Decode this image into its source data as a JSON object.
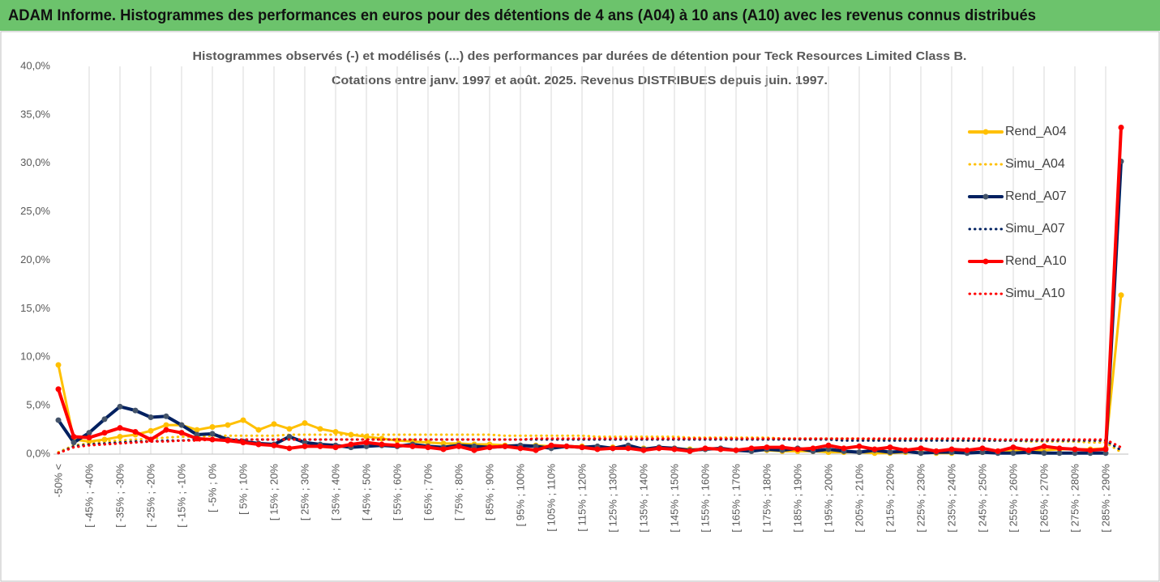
{
  "header": {
    "title": "ADAM Informe. Histogrammes des performances en euros pour des détentions de 4 ans (A04) à 10 ans (A10) avec les revenus connus distribués"
  },
  "chart_data": {
    "type": "line",
    "title": [
      "Histogrammes observés (-) et modélisés (...) des performances par durées de détention pour Teck Resources Limited Class B.",
      "Cotations entre janv. 1997 et août. 2025. Revenus DISTRIBUES depuis juin. 1997."
    ],
    "categories": [
      "-50% <",
      null,
      "[ -45% ; -40%",
      null,
      "[ -35% ; -30%",
      null,
      "[ -25% ; -20%",
      null,
      "[ -15% ; -10%",
      null,
      "[ -5% ; 0%",
      null,
      "[ 5% ; 10%",
      null,
      "[ 15% ; 20%",
      null,
      "[ 25% ; 30%",
      null,
      "[ 35% ; 40%",
      null,
      "[ 45% ; 50%",
      null,
      "[ 55% ; 60%",
      null,
      "[ 65% ; 70%",
      null,
      "[ 75% ; 80%",
      null,
      "[ 85% ; 90%",
      null,
      "[ 95% ; 100%",
      null,
      "[ 105% ; 110%",
      null,
      "[ 115% ; 120%",
      null,
      "[ 125% ; 130%",
      null,
      "[ 135% ; 140%",
      null,
      "[ 145% ; 150%",
      null,
      "[ 155% ; 160%",
      null,
      "[ 165% ; 170%",
      null,
      "[ 175% ; 180%",
      null,
      "[ 185% ; 190%",
      null,
      "[ 195% ; 200%",
      null,
      "[ 205% ; 210%",
      null,
      "[ 215% ; 220%",
      null,
      "[ 225% ; 230%",
      null,
      "[ 235% ; 240%",
      null,
      "[ 245% ; 250%",
      null,
      "[ 255% ; 260%",
      null,
      "[ 265% ; 270%",
      null,
      "[ 275% ; 280%",
      null,
      "[ 285% ; 290%",
      null
    ],
    "series": [
      {
        "name": "Rend_A04",
        "color": "#ffc000",
        "line_style": "solid",
        "values": [
          9.2,
          1.5,
          1.3,
          1.5,
          1.8,
          2.0,
          2.4,
          3.0,
          3.0,
          2.5,
          2.8,
          3.0,
          3.5,
          2.5,
          3.1,
          2.6,
          3.2,
          2.6,
          2.3,
          2.0,
          1.8,
          1.6,
          1.4,
          1.3,
          1.2,
          1.1,
          1.1,
          1.0,
          1.0,
          0.9,
          0.9,
          0.9,
          0.8,
          0.8,
          0.8,
          0.7,
          0.7,
          0.7,
          0.6,
          0.6,
          0.6,
          0.5,
          0.5,
          0.5,
          0.4,
          0.4,
          0.4,
          0.3,
          0.3,
          0.3,
          0.2,
          0.2,
          0.2,
          0.1,
          0.1,
          0.2,
          0.2,
          0.1,
          0.1,
          0.2,
          0.2,
          0.3,
          0.3,
          0.4,
          0.4,
          0.5,
          0.5,
          0.5,
          0.6,
          16.4
        ]
      },
      {
        "name": "Simu_A04",
        "color": "#ffc000",
        "line_style": "dotted",
        "values": [
          0.2,
          0.9,
          1.1,
          1.3,
          1.4,
          1.5,
          1.6,
          1.7,
          1.8,
          1.8,
          1.9,
          1.9,
          1.9,
          1.9,
          1.9,
          2.0,
          2.0,
          2.0,
          2.0,
          2.0,
          2.0,
          2.0,
          2.0,
          2.0,
          2.0,
          2.0,
          2.0,
          2.0,
          2.0,
          1.9,
          1.9,
          1.9,
          1.9,
          1.9,
          1.9,
          1.8,
          1.8,
          1.8,
          1.8,
          1.8,
          1.8,
          1.7,
          1.7,
          1.7,
          1.7,
          1.7,
          1.7,
          1.6,
          1.6,
          1.6,
          1.6,
          1.6,
          1.6,
          1.5,
          1.5,
          1.5,
          1.5,
          1.5,
          1.4,
          1.4,
          1.4,
          1.4,
          1.4,
          1.3,
          1.3,
          1.3,
          1.3,
          1.2,
          1.2,
          0.2
        ]
      },
      {
        "name": "Rend_A07",
        "color": "#002060",
        "line_style": "solid",
        "values": [
          3.5,
          1.2,
          2.2,
          3.6,
          4.9,
          4.5,
          3.8,
          3.9,
          3.0,
          2.0,
          2.1,
          1.5,
          1.3,
          1.1,
          1.0,
          1.8,
          1.2,
          1.0,
          0.9,
          0.7,
          0.8,
          0.9,
          0.8,
          1.0,
          0.8,
          0.7,
          0.9,
          0.8,
          0.7,
          0.8,
          0.9,
          0.8,
          0.6,
          0.8,
          0.7,
          0.8,
          0.6,
          0.9,
          0.5,
          0.7,
          0.6,
          0.4,
          0.5,
          0.6,
          0.4,
          0.3,
          0.5,
          0.4,
          0.6,
          0.3,
          0.5,
          0.3,
          0.2,
          0.4,
          0.2,
          0.3,
          0.1,
          0.2,
          0.2,
          0.1,
          0.2,
          0.1,
          0.1,
          0.2,
          0.1,
          0.1,
          0.1,
          0.1,
          0.1,
          30.2
        ]
      },
      {
        "name": "Simu_A07",
        "color": "#002060",
        "line_style": "dotted",
        "values": [
          0.1,
          0.8,
          1.0,
          1.1,
          1.2,
          1.3,
          1.3,
          1.4,
          1.4,
          1.5,
          1.5,
          1.5,
          1.5,
          1.5,
          1.5,
          1.5,
          1.5,
          1.5,
          1.5,
          1.5,
          1.5,
          1.5,
          1.5,
          1.5,
          1.5,
          1.5,
          1.5,
          1.5,
          1.5,
          1.5,
          1.5,
          1.5,
          1.5,
          1.5,
          1.5,
          1.5,
          1.5,
          1.5,
          1.5,
          1.5,
          1.5,
          1.5,
          1.5,
          1.5,
          1.5,
          1.5,
          1.5,
          1.5,
          1.5,
          1.5,
          1.5,
          1.4,
          1.4,
          1.4,
          1.4,
          1.4,
          1.4,
          1.4,
          1.4,
          1.4,
          1.4,
          1.4,
          1.4,
          1.4,
          1.4,
          1.4,
          1.4,
          1.4,
          1.4,
          0.4
        ]
      },
      {
        "name": "Rend_A10",
        "color": "#ff0000",
        "line_style": "solid",
        "values": [
          6.7,
          1.8,
          1.7,
          2.2,
          2.7,
          2.3,
          1.5,
          2.5,
          2.2,
          1.6,
          1.5,
          1.4,
          1.2,
          1.0,
          0.9,
          0.6,
          0.8,
          0.8,
          0.7,
          1.0,
          1.2,
          1.0,
          0.9,
          0.8,
          0.7,
          0.5,
          0.8,
          0.4,
          0.7,
          0.8,
          0.6,
          0.4,
          0.9,
          0.8,
          0.7,
          0.5,
          0.6,
          0.6,
          0.4,
          0.6,
          0.5,
          0.3,
          0.6,
          0.5,
          0.4,
          0.6,
          0.7,
          0.7,
          0.5,
          0.6,
          0.9,
          0.6,
          0.8,
          0.5,
          0.7,
          0.4,
          0.6,
          0.3,
          0.5,
          0.4,
          0.6,
          0.3,
          0.7,
          0.4,
          0.8,
          0.6,
          0.5,
          0.4,
          0.5,
          33.7
        ]
      },
      {
        "name": "Simu_A10",
        "color": "#ff0000",
        "line_style": "dotted",
        "values": [
          0.1,
          0.7,
          0.9,
          1.0,
          1.1,
          1.2,
          1.3,
          1.3,
          1.4,
          1.4,
          1.5,
          1.5,
          1.5,
          1.5,
          1.5,
          1.5,
          1.5,
          1.5,
          1.5,
          1.5,
          1.5,
          1.5,
          1.5,
          1.5,
          1.5,
          1.5,
          1.5,
          1.5,
          1.5,
          1.5,
          1.5,
          1.6,
          1.6,
          1.6,
          1.6,
          1.6,
          1.6,
          1.6,
          1.6,
          1.6,
          1.6,
          1.6,
          1.6,
          1.6,
          1.6,
          1.6,
          1.6,
          1.6,
          1.6,
          1.6,
          1.6,
          1.6,
          1.6,
          1.6,
          1.6,
          1.6,
          1.6,
          1.6,
          1.6,
          1.6,
          1.6,
          1.5,
          1.5,
          1.5,
          1.5,
          1.5,
          1.5,
          1.5,
          1.5,
          0.7
        ]
      }
    ],
    "ylim": [
      0,
      40
    ],
    "yticks": [
      {
        "value": 0,
        "label": "0,0%"
      },
      {
        "value": 5,
        "label": "5,0%"
      },
      {
        "value": 10,
        "label": "10,0%"
      },
      {
        "value": 15,
        "label": "15,0%"
      },
      {
        "value": 20,
        "label": "20,0%"
      },
      {
        "value": 25,
        "label": "25,0%"
      },
      {
        "value": 30,
        "label": "30,0%"
      },
      {
        "value": 35,
        "label": "35,0%"
      },
      {
        "value": 40,
        "label": "40,0%"
      }
    ],
    "grid": true,
    "legend": {
      "position": "right"
    }
  }
}
